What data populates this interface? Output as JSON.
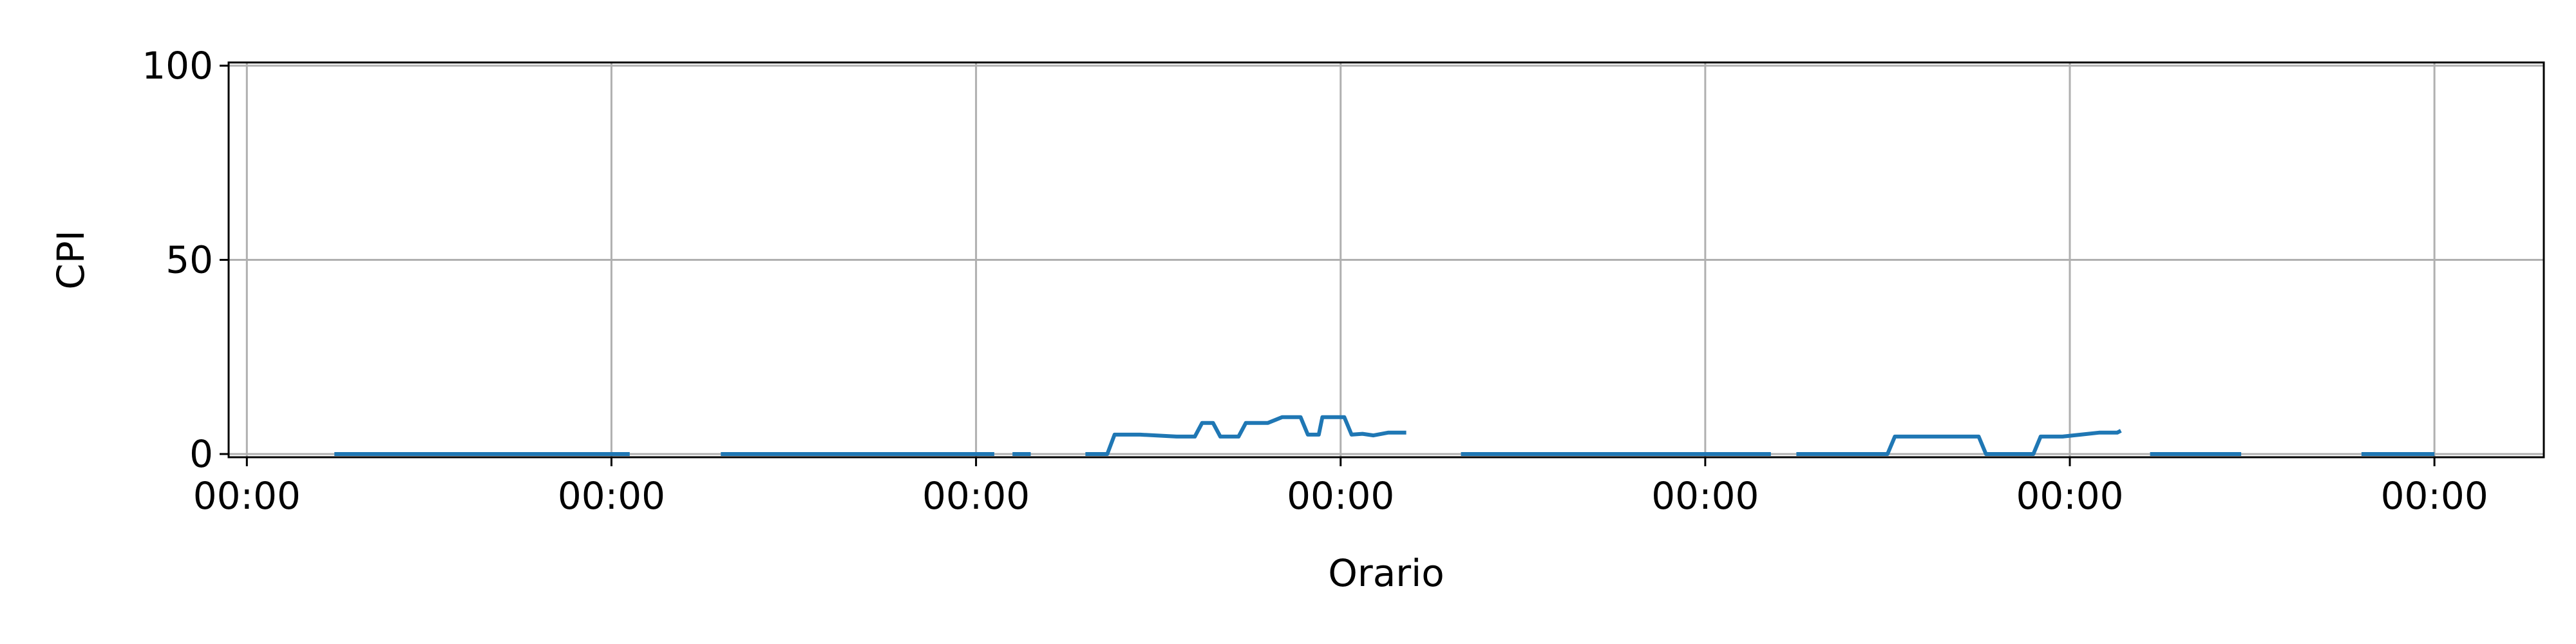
{
  "chart_data": {
    "type": "line",
    "title": "",
    "xlabel": "Orario",
    "ylabel": "CPI",
    "ylim": [
      0,
      100
    ],
    "xlim": [
      -0.05,
      6.3
    ],
    "yticks": [
      {
        "value": 0,
        "label": "0"
      },
      {
        "value": 50,
        "label": "50"
      },
      {
        "value": 100,
        "label": "100"
      }
    ],
    "xticks": [
      {
        "value": 0,
        "label": "00:00"
      },
      {
        "value": 1,
        "label": "00:00"
      },
      {
        "value": 2,
        "label": "00:00"
      },
      {
        "value": 3,
        "label": "00:00"
      },
      {
        "value": 4,
        "label": "00:00"
      },
      {
        "value": 5,
        "label": "00:00"
      },
      {
        "value": 6,
        "label": "00:00"
      }
    ],
    "grid": true,
    "legend": "none",
    "series_color": "#1f77b4",
    "segments": [
      [
        [
          0.24,
          0
        ],
        [
          1.05,
          0
        ]
      ],
      [
        [
          1.3,
          0
        ],
        [
          2.05,
          0
        ]
      ],
      [
        [
          2.1,
          0
        ],
        [
          2.15,
          0
        ]
      ],
      [
        [
          2.3,
          0
        ],
        [
          2.36,
          0
        ],
        [
          2.38,
          5
        ],
        [
          2.45,
          5
        ],
        [
          2.55,
          4.5
        ],
        [
          2.6,
          4.5
        ],
        [
          2.62,
          8
        ],
        [
          2.65,
          8
        ],
        [
          2.67,
          4.5
        ],
        [
          2.72,
          4.5
        ],
        [
          2.74,
          8
        ],
        [
          2.8,
          8
        ],
        [
          2.84,
          9.5
        ],
        [
          2.89,
          9.5
        ],
        [
          2.91,
          5
        ],
        [
          2.94,
          5
        ],
        [
          2.95,
          9.5
        ],
        [
          3.01,
          9.5
        ],
        [
          3.03,
          5
        ],
        [
          3.06,
          5.2
        ],
        [
          3.09,
          4.8
        ],
        [
          3.13,
          5.5
        ],
        [
          3.18,
          5.5
        ]
      ],
      [
        [
          3.33,
          0
        ],
        [
          4.18,
          0
        ]
      ],
      [
        [
          4.25,
          0
        ],
        [
          4.5,
          0
        ],
        [
          4.52,
          4.5
        ],
        [
          4.55,
          4.5
        ],
        [
          4.75,
          4.5
        ],
        [
          4.77,
          0
        ],
        [
          4.9,
          0
        ],
        [
          4.92,
          4.5
        ],
        [
          4.98,
          4.5
        ],
        [
          5.03,
          5
        ],
        [
          5.08,
          5.5
        ],
        [
          5.13,
          5.5
        ],
        [
          5.14,
          6
        ]
      ],
      [
        [
          5.22,
          0
        ],
        [
          5.47,
          0
        ]
      ],
      [
        [
          5.8,
          0
        ],
        [
          6.0,
          0
        ]
      ]
    ]
  }
}
